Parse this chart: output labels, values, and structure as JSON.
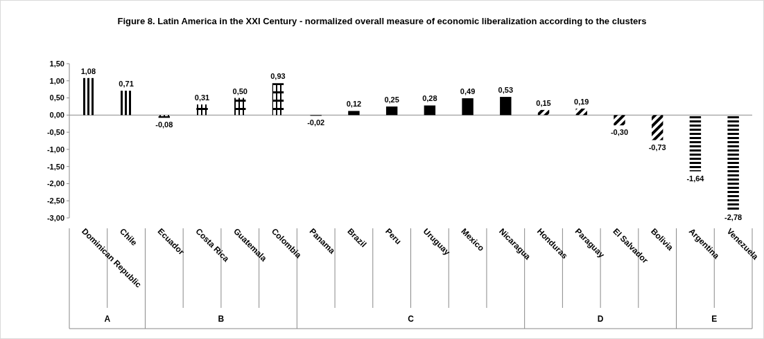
{
  "chart_data": {
    "type": "bar",
    "title": "Figure 8. Latin America in the XXI Century - normalized overall measure of economic liberalization according to the clusters",
    "categories": [
      "Dominican Republic",
      "Chile",
      "Ecuador",
      "Costa Rica",
      "Guatemala",
      "Colombia",
      "Panama",
      "Brazil",
      "Peru",
      "Uruguay",
      "Mexico",
      "Nicaragua",
      "Honduras",
      "Paraguay",
      "El Salvador",
      "Bolivia",
      "Argentina",
      "Venezuela"
    ],
    "series": [
      {
        "color": "#000000",
        "values": [
          1.08,
          0.71,
          null,
          null,
          null,
          null,
          null,
          null,
          null,
          null,
          null,
          null,
          null,
          null,
          null,
          null,
          null,
          null
        ]
      },
      {
        "color": "#000000",
        "values": [
          null,
          null,
          -0.08,
          0.31,
          0.5,
          0.93,
          null,
          null,
          null,
          null,
          null,
          null,
          null,
          null,
          null,
          null,
          null,
          null
        ]
      },
      {
        "color": "#000000",
        "values": [
          null,
          null,
          null,
          null,
          null,
          null,
          -0.02,
          0.12,
          0.25,
          0.28,
          0.49,
          0.53,
          null,
          null,
          null,
          null,
          null,
          null
        ]
      },
      {
        "color": "#000000",
        "values": [
          null,
          null,
          null,
          null,
          null,
          null,
          null,
          null,
          null,
          null,
          null,
          null,
          0.15,
          0.19,
          -0.3,
          -0.73,
          null,
          null
        ]
      },
      {
        "color": "#000000",
        "values": [
          null,
          null,
          null,
          null,
          null,
          null,
          null,
          null,
          null,
          null,
          null,
          null,
          null,
          null,
          null,
          null,
          -1.64,
          -2.78
        ]
      }
    ],
    "value_labels": [
      "1,08",
      "0,71",
      "-0,08",
      "0,31",
      "0,50",
      "0,93",
      "-0,02",
      "0,12",
      "0,25",
      "0,28",
      "0,49",
      "0,53",
      "0,15",
      "0,19",
      "-0,30",
      "-0,73",
      "-1,64",
      "-2,78"
    ],
    "annotations": [
      "A",
      "B",
      "C",
      "D",
      "E"
    ],
    "ylim": [
      -3,
      1.5
    ],
    "yticks": [
      {
        "value": 1.5,
        "label": "1,50"
      },
      {
        "value": 1,
        "label": "1,00"
      },
      {
        "value": 0.5,
        "label": "0,50"
      },
      {
        "value": 0,
        "label": "0,00"
      },
      {
        "value": -0.5,
        "label": "-0,50"
      },
      {
        "value": -1,
        "label": "-1,00"
      },
      {
        "value": -1.5,
        "label": "-1,50"
      },
      {
        "value": -2,
        "label": "-2,00"
      },
      {
        "value": -2.5,
        "label": "-2,50"
      },
      {
        "value": -3,
        "label": "-3,00"
      }
    ]
  }
}
